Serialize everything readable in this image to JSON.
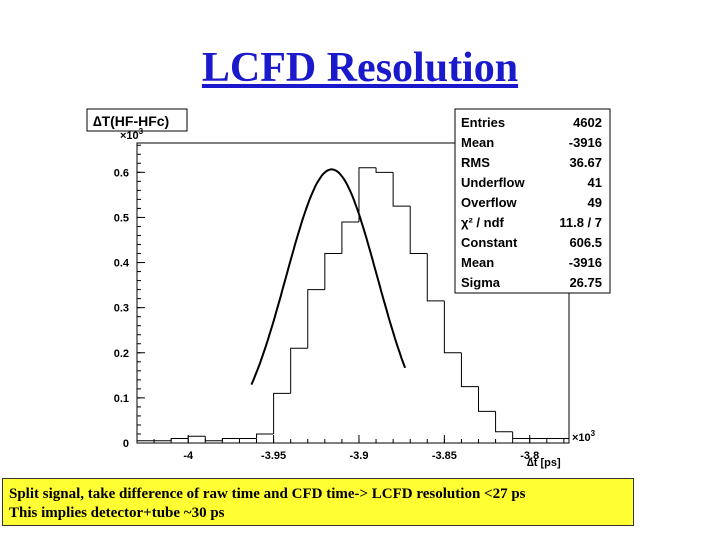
{
  "slide": {
    "title": "LCFD Resolution",
    "caption_line1": "Split signal, take difference of  raw time and CFD time-> LCFD resolution <27 ps",
    "caption_line2": "This implies detector+tube ~30 ps"
  },
  "colors": {
    "title": "#1a1acc",
    "caption_bg": "#ffff33"
  },
  "chart_data": {
    "type": "bar",
    "title": "∆T(HF-HFc)",
    "xlabel": "∆t [ps]",
    "x_exponent_label": "×10",
    "x_exponent": "3",
    "y_exponent_label": "×10",
    "y_exponent": "3",
    "xlim": [
      -4.03,
      -3.777
    ],
    "ylim": [
      0,
      0.665
    ],
    "x_ticks": [
      -4,
      -3.95,
      -3.9,
      -3.85,
      -3.8
    ],
    "x_tick_labels": [
      "-4",
      "-3.95",
      "-3.9",
      "-3.85",
      "-3.8"
    ],
    "y_ticks": [
      0,
      0.1,
      0.2,
      0.3,
      0.4,
      0.5,
      0.6
    ],
    "y_tick_labels": [
      "0",
      "0.1",
      "0.2",
      "0.3",
      "0.4",
      "0.5",
      "0.6"
    ],
    "histogram": {
      "bin_edges": [
        -4.03,
        -4.02,
        -4.01,
        -4.0,
        -3.99,
        -3.98,
        -3.97,
        -3.96,
        -3.95,
        -3.94,
        -3.93,
        -3.92,
        -3.91,
        -3.9,
        -3.89,
        -3.88,
        -3.87,
        -3.86,
        -3.85,
        -3.84,
        -3.83,
        -3.82,
        -3.81,
        -3.8,
        -3.79,
        -3.777
      ],
      "counts": [
        0.005,
        0.005,
        0.01,
        0.015,
        0.005,
        0.01,
        0.01,
        0.02,
        0.11,
        0.21,
        0.34,
        0.42,
        0.49,
        0.61,
        0.6,
        0.525,
        0.42,
        0.315,
        0.2,
        0.125,
        0.07,
        0.025,
        0.01,
        0.01,
        0.01
      ]
    },
    "fit": {
      "type": "gaussian",
      "constant": 0.6065,
      "mean": -3.916,
      "sigma": 0.02675,
      "range": [
        -3.963,
        -3.873
      ]
    },
    "stats_box": [
      {
        "label": "Entries",
        "value": "4602"
      },
      {
        "label": "Mean",
        "value": "-3916"
      },
      {
        "label": "RMS",
        "value": "36.67"
      },
      {
        "label": "Underflow",
        "value": "41"
      },
      {
        "label": "Overflow",
        "value": "49"
      },
      {
        "label": "χ² / ndf",
        "value": "11.8 / 7"
      },
      {
        "label": "Constant",
        "value": "606.5"
      },
      {
        "label": "Mean",
        "value": "-3916"
      },
      {
        "label": "Sigma",
        "value": "26.75"
      }
    ],
    "grid": false,
    "legend_position": "top-right"
  }
}
